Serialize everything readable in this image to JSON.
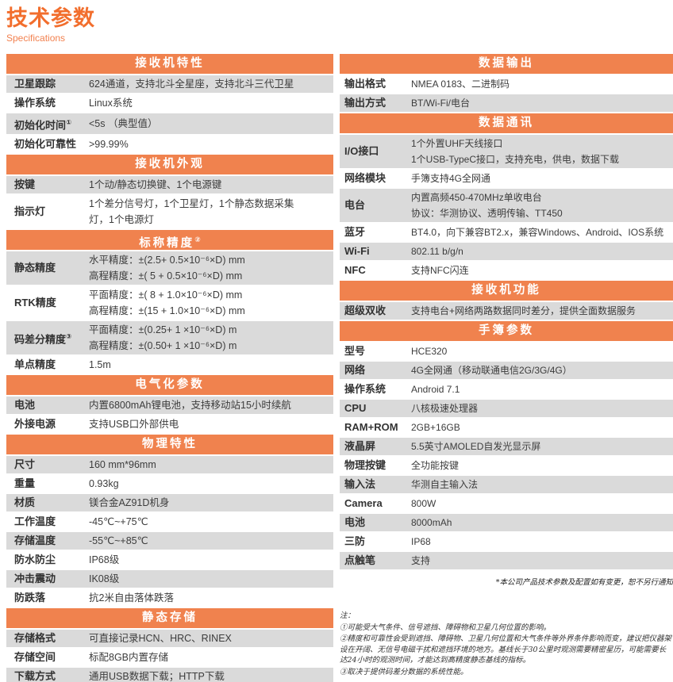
{
  "page": {
    "title": "技术参数",
    "subtitle": "Specifications",
    "disclaimer": "*本公司产品技术参数及配置如有变更，恕不另行通知",
    "notes": [
      "注：",
      "①可能受大气条件、信号遮挡、障碍物和卫星几何位置的影响。",
      "②精度和可靠性会受到遮挡、障碍物、卫星几何位置和大气条件等外界条件影响而变，建议把仪器架设在开阔、无信号电磁干扰和遮挡环境的地方。基线长于30公里时观测需要精密星历，可能需要长达24小时的观测时间，才能达到高精度静态基线的指标。",
      "③取决于提供码差分数据的系统性能。"
    ]
  },
  "colors": {
    "title_orange": "#F26E2D",
    "header_orange": "#F0824E",
    "row_gray": "#DADADA",
    "text_dark": "#3c3c3c"
  },
  "left_column": {
    "sections": [
      {
        "title": "接收机特性",
        "rows": [
          {
            "label": "卫星跟踪",
            "bg": "gray",
            "lines": [
              "624通道，支持北斗全星座，支持北斗三代卫星"
            ]
          },
          {
            "label": "操作系统",
            "bg": "white",
            "lines": [
              "Linux系统"
            ]
          },
          {
            "label": "初始化时间",
            "sup": "①",
            "bg": "gray",
            "lines": [
              "<5s （典型值）"
            ]
          },
          {
            "label": "初始化可靠性",
            "bg": "white",
            "lines": [
              ">99.99%"
            ]
          }
        ]
      },
      {
        "title": "接收机外观",
        "rows": [
          {
            "label": "按键",
            "bg": "gray",
            "lines": [
              "1个动/静态切换键、1个电源键"
            ]
          },
          {
            "label": "指示灯",
            "bg": "white",
            "lines": [
              "1个差分信号灯，1个卫星灯，1个静态数据采集",
              "灯，1个电源灯"
            ]
          }
        ]
      },
      {
        "title": "标称精度",
        "sup": "②",
        "rows": [
          {
            "label": "静态精度",
            "bg": "gray",
            "lines": [
              "水平精度：±(2.5+ 0.5×10⁻⁶×D) mm",
              "高程精度：±( 5 + 0.5×10⁻⁶×D) mm"
            ]
          },
          {
            "label": "RTK精度",
            "bg": "white",
            "lines": [
              "平面精度：±( 8 + 1.0×10⁻⁶×D) mm",
              "高程精度：±(15 + 1.0×10⁻⁶×D) mm"
            ]
          },
          {
            "label": "码差分精度",
            "sup": "③",
            "bg": "gray",
            "lines": [
              "平面精度：±(0.25+ 1 ×10⁻⁶×D) m",
              "高程精度：±(0.50+ 1 ×10⁻⁶×D) m"
            ]
          },
          {
            "label": "单点精度",
            "bg": "white",
            "lines": [
              "1.5m"
            ]
          }
        ]
      },
      {
        "title": "电气化参数",
        "rows": [
          {
            "label": "电池",
            "bg": "gray",
            "lines": [
              "内置6800mAh锂电池，支持移动站15小时续航"
            ]
          },
          {
            "label": "外接电源",
            "bg": "white",
            "lines": [
              "支持USB口外部供电"
            ]
          }
        ]
      },
      {
        "title": "物理特性",
        "rows": [
          {
            "label": "尺寸",
            "bg": "gray",
            "lines": [
              "160 mm*96mm"
            ]
          },
          {
            "label": "重量",
            "bg": "white",
            "lines": [
              "0.93kg"
            ]
          },
          {
            "label": "材质",
            "bg": "gray",
            "lines": [
              "镁合金AZ91D机身"
            ]
          },
          {
            "label": "工作温度",
            "bg": "white",
            "lines": [
              "-45℃~+75℃"
            ]
          },
          {
            "label": "存储温度",
            "bg": "gray",
            "lines": [
              "-55℃~+85℃"
            ]
          },
          {
            "label": "防水防尘",
            "bg": "white",
            "lines": [
              "IP68级"
            ]
          },
          {
            "label": "冲击震动",
            "bg": "gray",
            "lines": [
              "IK08级"
            ]
          },
          {
            "label": "防跌落",
            "bg": "white",
            "lines": [
              "抗2米自由落体跌落"
            ]
          }
        ]
      },
      {
        "title": "静态存储",
        "rows": [
          {
            "label": "存储格式",
            "bg": "gray",
            "lines": [
              "可直接记录HCN、HRC、RINEX"
            ]
          },
          {
            "label": "存储空间",
            "bg": "white",
            "lines": [
              "标配8GB内置存储"
            ]
          },
          {
            "label": "下载方式",
            "bg": "gray",
            "lines": [
              "通用USB数据下载；HTTP下载"
            ]
          }
        ]
      }
    ]
  },
  "right_column": {
    "sections": [
      {
        "title": "数据输出",
        "rows": [
          {
            "label": "输出格式",
            "bg": "white",
            "lines": [
              "NMEA 0183、二进制码"
            ]
          },
          {
            "label": "输出方式",
            "bg": "gray",
            "lines": [
              "BT/Wi-Fi/电台"
            ]
          }
        ]
      },
      {
        "title": "数据通讯",
        "rows": [
          {
            "label": "I/O接口",
            "bg": "gray",
            "lines": [
              "1个外置UHF天线接口",
              "1个USB-TypeC接口，支持充电，供电，数据下载"
            ]
          },
          {
            "label": "网络模块",
            "bg": "white",
            "lines": [
              "手簿支持4G全网通"
            ]
          },
          {
            "label": "电台",
            "bg": "gray",
            "lines": [
              "内置高频450-470MHz单收电台",
              "协议：华测协议、透明传输、TT450"
            ]
          },
          {
            "label": "蓝牙",
            "bg": "white",
            "lines": [
              "BT4.0，向下兼容BT2.x，兼容Windows、Android、IOS系统"
            ]
          },
          {
            "label": "Wi-Fi",
            "bg": "gray",
            "lines": [
              "802.11 b/g/n"
            ]
          },
          {
            "label": "NFC",
            "bg": "white",
            "lines": [
              "支持NFC闪连"
            ]
          }
        ]
      },
      {
        "title": "接收机功能",
        "rows": [
          {
            "label": "超级双收",
            "bg": "gray",
            "lines": [
              "支持电台+网络两路数据同时差分，提供全面数据服务"
            ]
          }
        ]
      },
      {
        "title": "手簿参数",
        "rows": [
          {
            "label": "型号",
            "bg": "white",
            "lines": [
              "HCE320"
            ]
          },
          {
            "label": "网络",
            "bg": "gray",
            "lines": [
              "4G全网通（移动联通电信2G/3G/4G）"
            ]
          },
          {
            "label": "操作系统",
            "bg": "white",
            "lines": [
              "Android 7.1"
            ]
          },
          {
            "label": "CPU",
            "bg": "gray",
            "lines": [
              "八核极速处理器"
            ]
          },
          {
            "label": "RAM+ROM",
            "bg": "white",
            "lines": [
              "2GB+16GB"
            ]
          },
          {
            "label": "液晶屏",
            "bg": "gray",
            "lines": [
              "5.5英寸AMOLED自发光显示屏"
            ]
          },
          {
            "label": "物理按键",
            "bg": "white",
            "lines": [
              "全功能按键"
            ]
          },
          {
            "label": "输入法",
            "bg": "gray",
            "lines": [
              "华测自主输入法"
            ]
          },
          {
            "label": "Camera",
            "bg": "white",
            "lines": [
              "800W"
            ]
          },
          {
            "label": "电池",
            "bg": "gray",
            "lines": [
              "8000mAh"
            ]
          },
          {
            "label": "三防",
            "bg": "white",
            "lines": [
              "IP68"
            ]
          },
          {
            "label": "点触笔",
            "bg": "gray",
            "lines": [
              "支持"
            ]
          }
        ]
      }
    ]
  }
}
